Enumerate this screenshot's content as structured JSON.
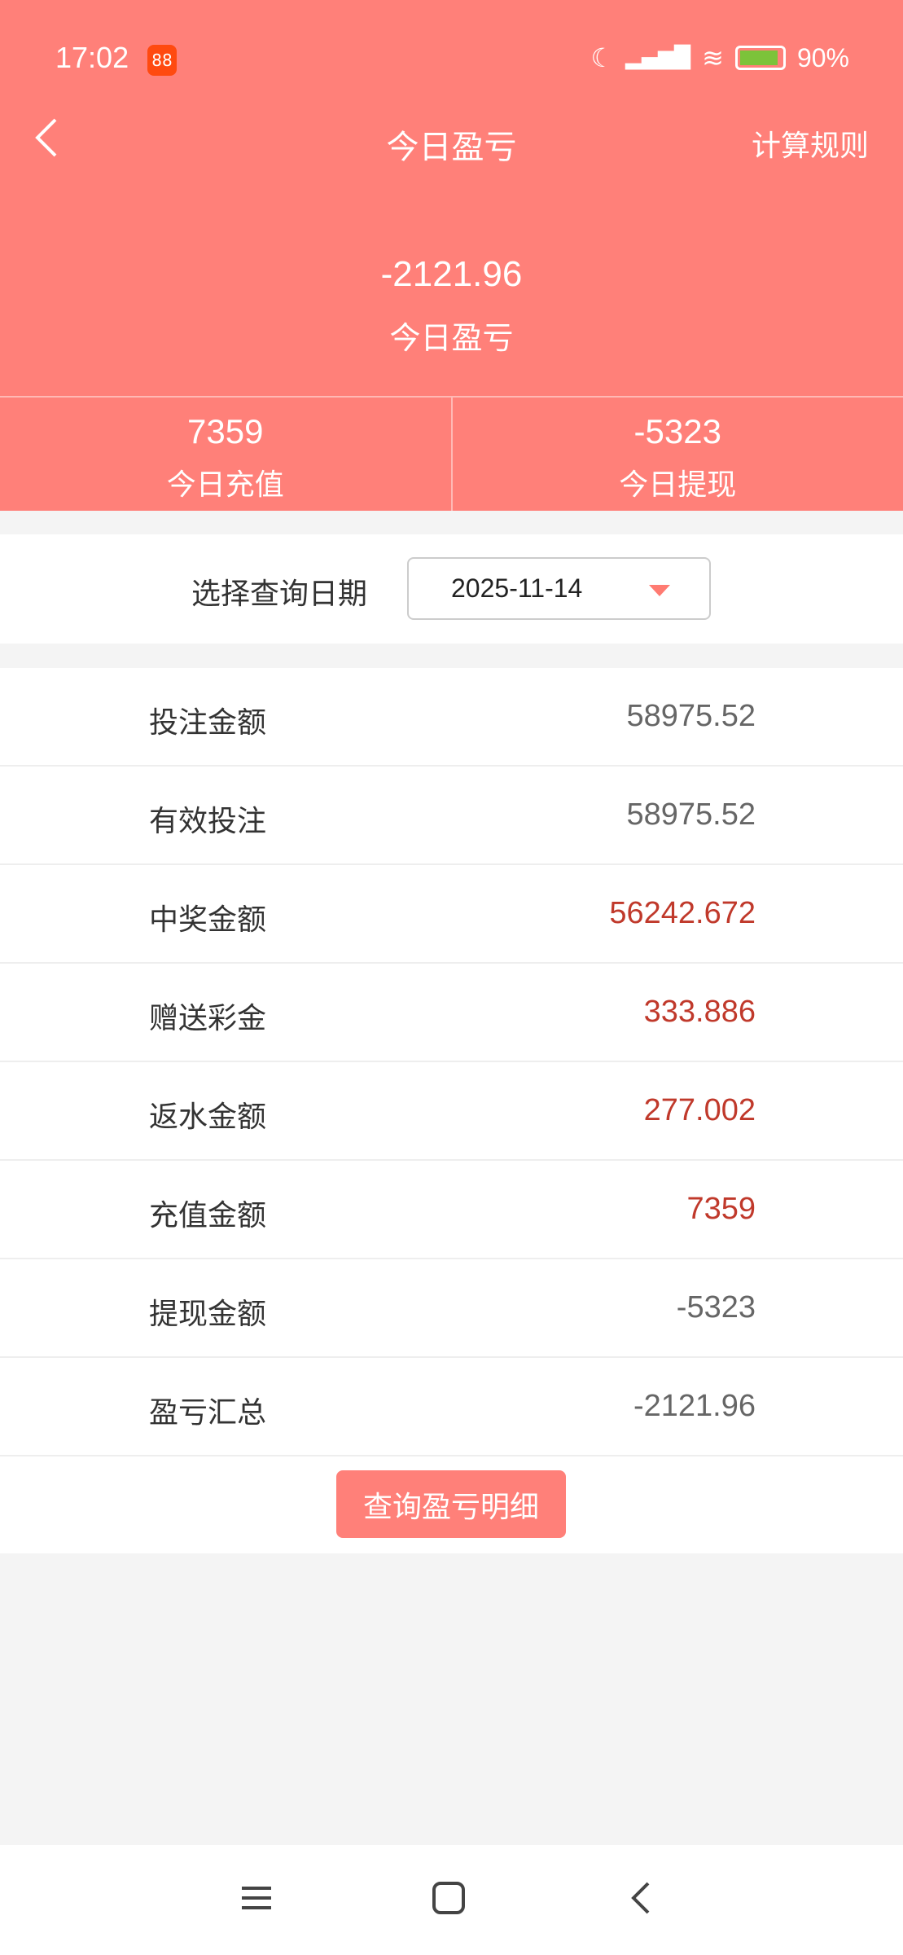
{
  "status_bar": {
    "time": "17:02",
    "app_badge": "88",
    "battery": "90%",
    "icons": [
      "moon-icon",
      "signal-icon",
      "wifi-icon",
      "battery-charging-icon"
    ]
  },
  "header": {
    "title": "今日盈亏",
    "right_action": "计算规则",
    "back_icon": "chevron-left-icon"
  },
  "summary": {
    "value": "-2121.96",
    "label": "今日盈亏"
  },
  "stats": [
    {
      "value": "7359",
      "label": "今日充值"
    },
    {
      "value": "-5323",
      "label": "今日提现"
    }
  ],
  "date_filter": {
    "label": "选择查询日期",
    "value": "2025-11-14"
  },
  "rows": [
    {
      "label": "投注金额",
      "value": "58975.52",
      "highlight": false
    },
    {
      "label": "有效投注",
      "value": "58975.52",
      "highlight": false
    },
    {
      "label": "中奖金额",
      "value": "56242.672",
      "highlight": true
    },
    {
      "label": "赠送彩金",
      "value": "333.886",
      "highlight": true
    },
    {
      "label": "返水金额",
      "value": "277.002",
      "highlight": true
    },
    {
      "label": "充值金额",
      "value": "7359",
      "highlight": true
    },
    {
      "label": "提现金额",
      "value": "-5323",
      "highlight": false
    },
    {
      "label": "盈亏汇总",
      "value": "-2121.96",
      "highlight": false
    }
  ],
  "detail_button": "查询盈亏明细",
  "colors": {
    "brand": "#ff8079",
    "highlight": "#c0392b"
  }
}
